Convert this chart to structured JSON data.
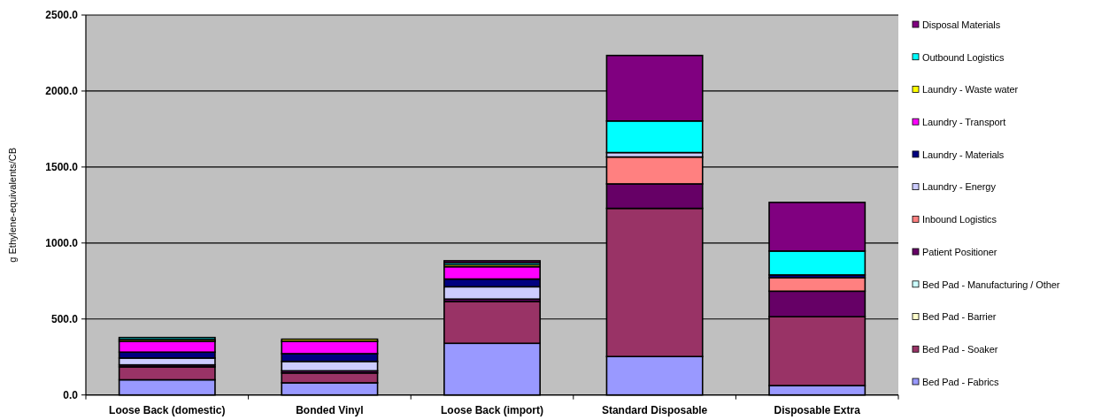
{
  "chart_data": {
    "type": "bar",
    "stacked": true,
    "ylabel": "g Ethylene-equivalents/CB",
    "categories": [
      "Loose Back (domestic)",
      "Bonded Vinyl",
      "Loose Back (import)",
      "Standard Disposable",
      "Disposable Extra"
    ],
    "series": [
      {
        "name": "Bed Pad - Fabrics",
        "color": "#9999ff",
        "values": [
          100,
          80,
          340,
          253,
          62
        ]
      },
      {
        "name": "Bed Pad - Soaker",
        "color": "#993366",
        "values": [
          85,
          65,
          275,
          975,
          453
        ]
      },
      {
        "name": "Bed Pad - Barrier",
        "color": "#ffffcc",
        "values": [
          0,
          0,
          0,
          0,
          0
        ]
      },
      {
        "name": "Bed Pad - Manufacturing / Other",
        "color": "#ccffff",
        "values": [
          0,
          0,
          0,
          0,
          0
        ]
      },
      {
        "name": "Patient Positioner",
        "color": "#660066",
        "values": [
          13,
          14,
          16,
          161,
          168
        ]
      },
      {
        "name": "Inbound Logistics",
        "color": "#ff8080",
        "values": [
          0,
          0,
          0,
          177,
          88
        ]
      },
      {
        "name": "Laundry - Energy",
        "color": "#ccccff",
        "values": [
          45,
          62,
          81,
          29,
          0
        ]
      },
      {
        "name": "Laundry - Materials",
        "color": "#000080",
        "values": [
          39,
          51,
          51,
          0,
          19
        ]
      },
      {
        "name": "Laundry - Transport",
        "color": "#ff00ff",
        "values": [
          71,
          81,
          81,
          0,
          0
        ]
      },
      {
        "name": "Laundry - Waste water",
        "color": "#ffff00",
        "values": [
          12,
          14,
          13,
          0,
          0
        ]
      },
      {
        "name": "Outbound Logistics",
        "color": "#00ffff",
        "values": [
          13,
          0,
          13,
          208,
          157
        ]
      },
      {
        "name": "Disposal Materials",
        "color": "#800080",
        "values": [
          0,
          0,
          13,
          431,
          320
        ]
      }
    ],
    "ylim": [
      0,
      2500
    ],
    "yticks": [
      {
        "value": 0,
        "label": "0.0"
      },
      {
        "value": 500,
        "label": "500.0"
      },
      {
        "value": 1000,
        "label": "1000.0"
      },
      {
        "value": 1500,
        "label": "1500.0"
      },
      {
        "value": 2000,
        "label": "2000.0"
      },
      {
        "value": 2500,
        "label": "2500.0"
      }
    ],
    "grid": "y",
    "legend": "right"
  }
}
